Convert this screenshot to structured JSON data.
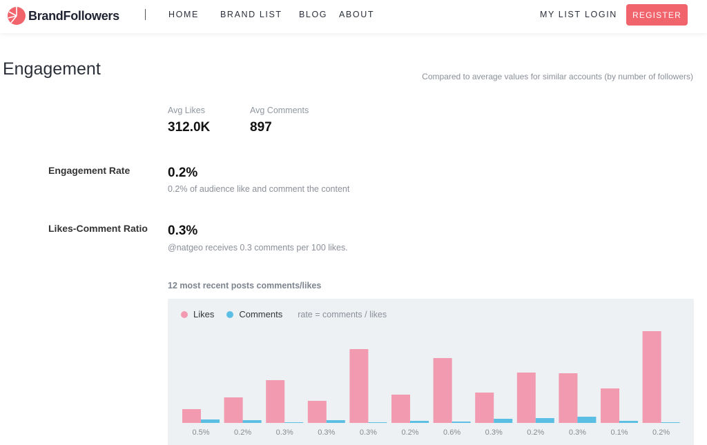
{
  "nav": {
    "brand": "BrandFollowers",
    "links": [
      "HOME",
      "BRAND LIST",
      "BLOG",
      "ABOUT"
    ],
    "my_list": "MY LIST",
    "login": "LOGIN",
    "register": "REGISTER",
    "accent": "#f2646c"
  },
  "engagement": {
    "title": "Engagement",
    "compared_note": "Compared to average values for similar accounts (by number of followers)",
    "avg_likes_label": "Avg Likes",
    "avg_likes_value": "312.0K",
    "avg_comments_label": "Avg Comments",
    "avg_comments_value": "897",
    "rate_label": "Engagement Rate",
    "rate_value": "0.2%",
    "rate_desc": "0.2% of audience like and comment the content",
    "ratio_label": "Likes-Comment Ratio",
    "ratio_value": "0.3%",
    "ratio_desc": "@natgeo receives 0.3 comments per 100 likes."
  },
  "chart_title": "12 most recent posts comments/likes",
  "chart_data": {
    "type": "bar",
    "legend": [
      "Likes",
      "Comments"
    ],
    "legend_note": "rate = comments / likes",
    "colors": {
      "likes": "#f29ab0",
      "comments": "#5bbfe4"
    },
    "categories": [
      "0.5%",
      "0.2%",
      "0.3%",
      "0.3%",
      "0.3%",
      "0.2%",
      "0.6%",
      "0.3%",
      "0.2%",
      "0.3%",
      "0.1%",
      "0.2%"
    ],
    "series": [
      {
        "name": "Likes",
        "values": [
          20,
          37,
          62,
          32,
          107,
          41,
          94,
          44,
          73,
          72,
          50,
          133
        ]
      },
      {
        "name": "Comments",
        "values": [
          5,
          4,
          1,
          4,
          1,
          3,
          2,
          6,
          7,
          9,
          3,
          1
        ]
      }
    ]
  }
}
